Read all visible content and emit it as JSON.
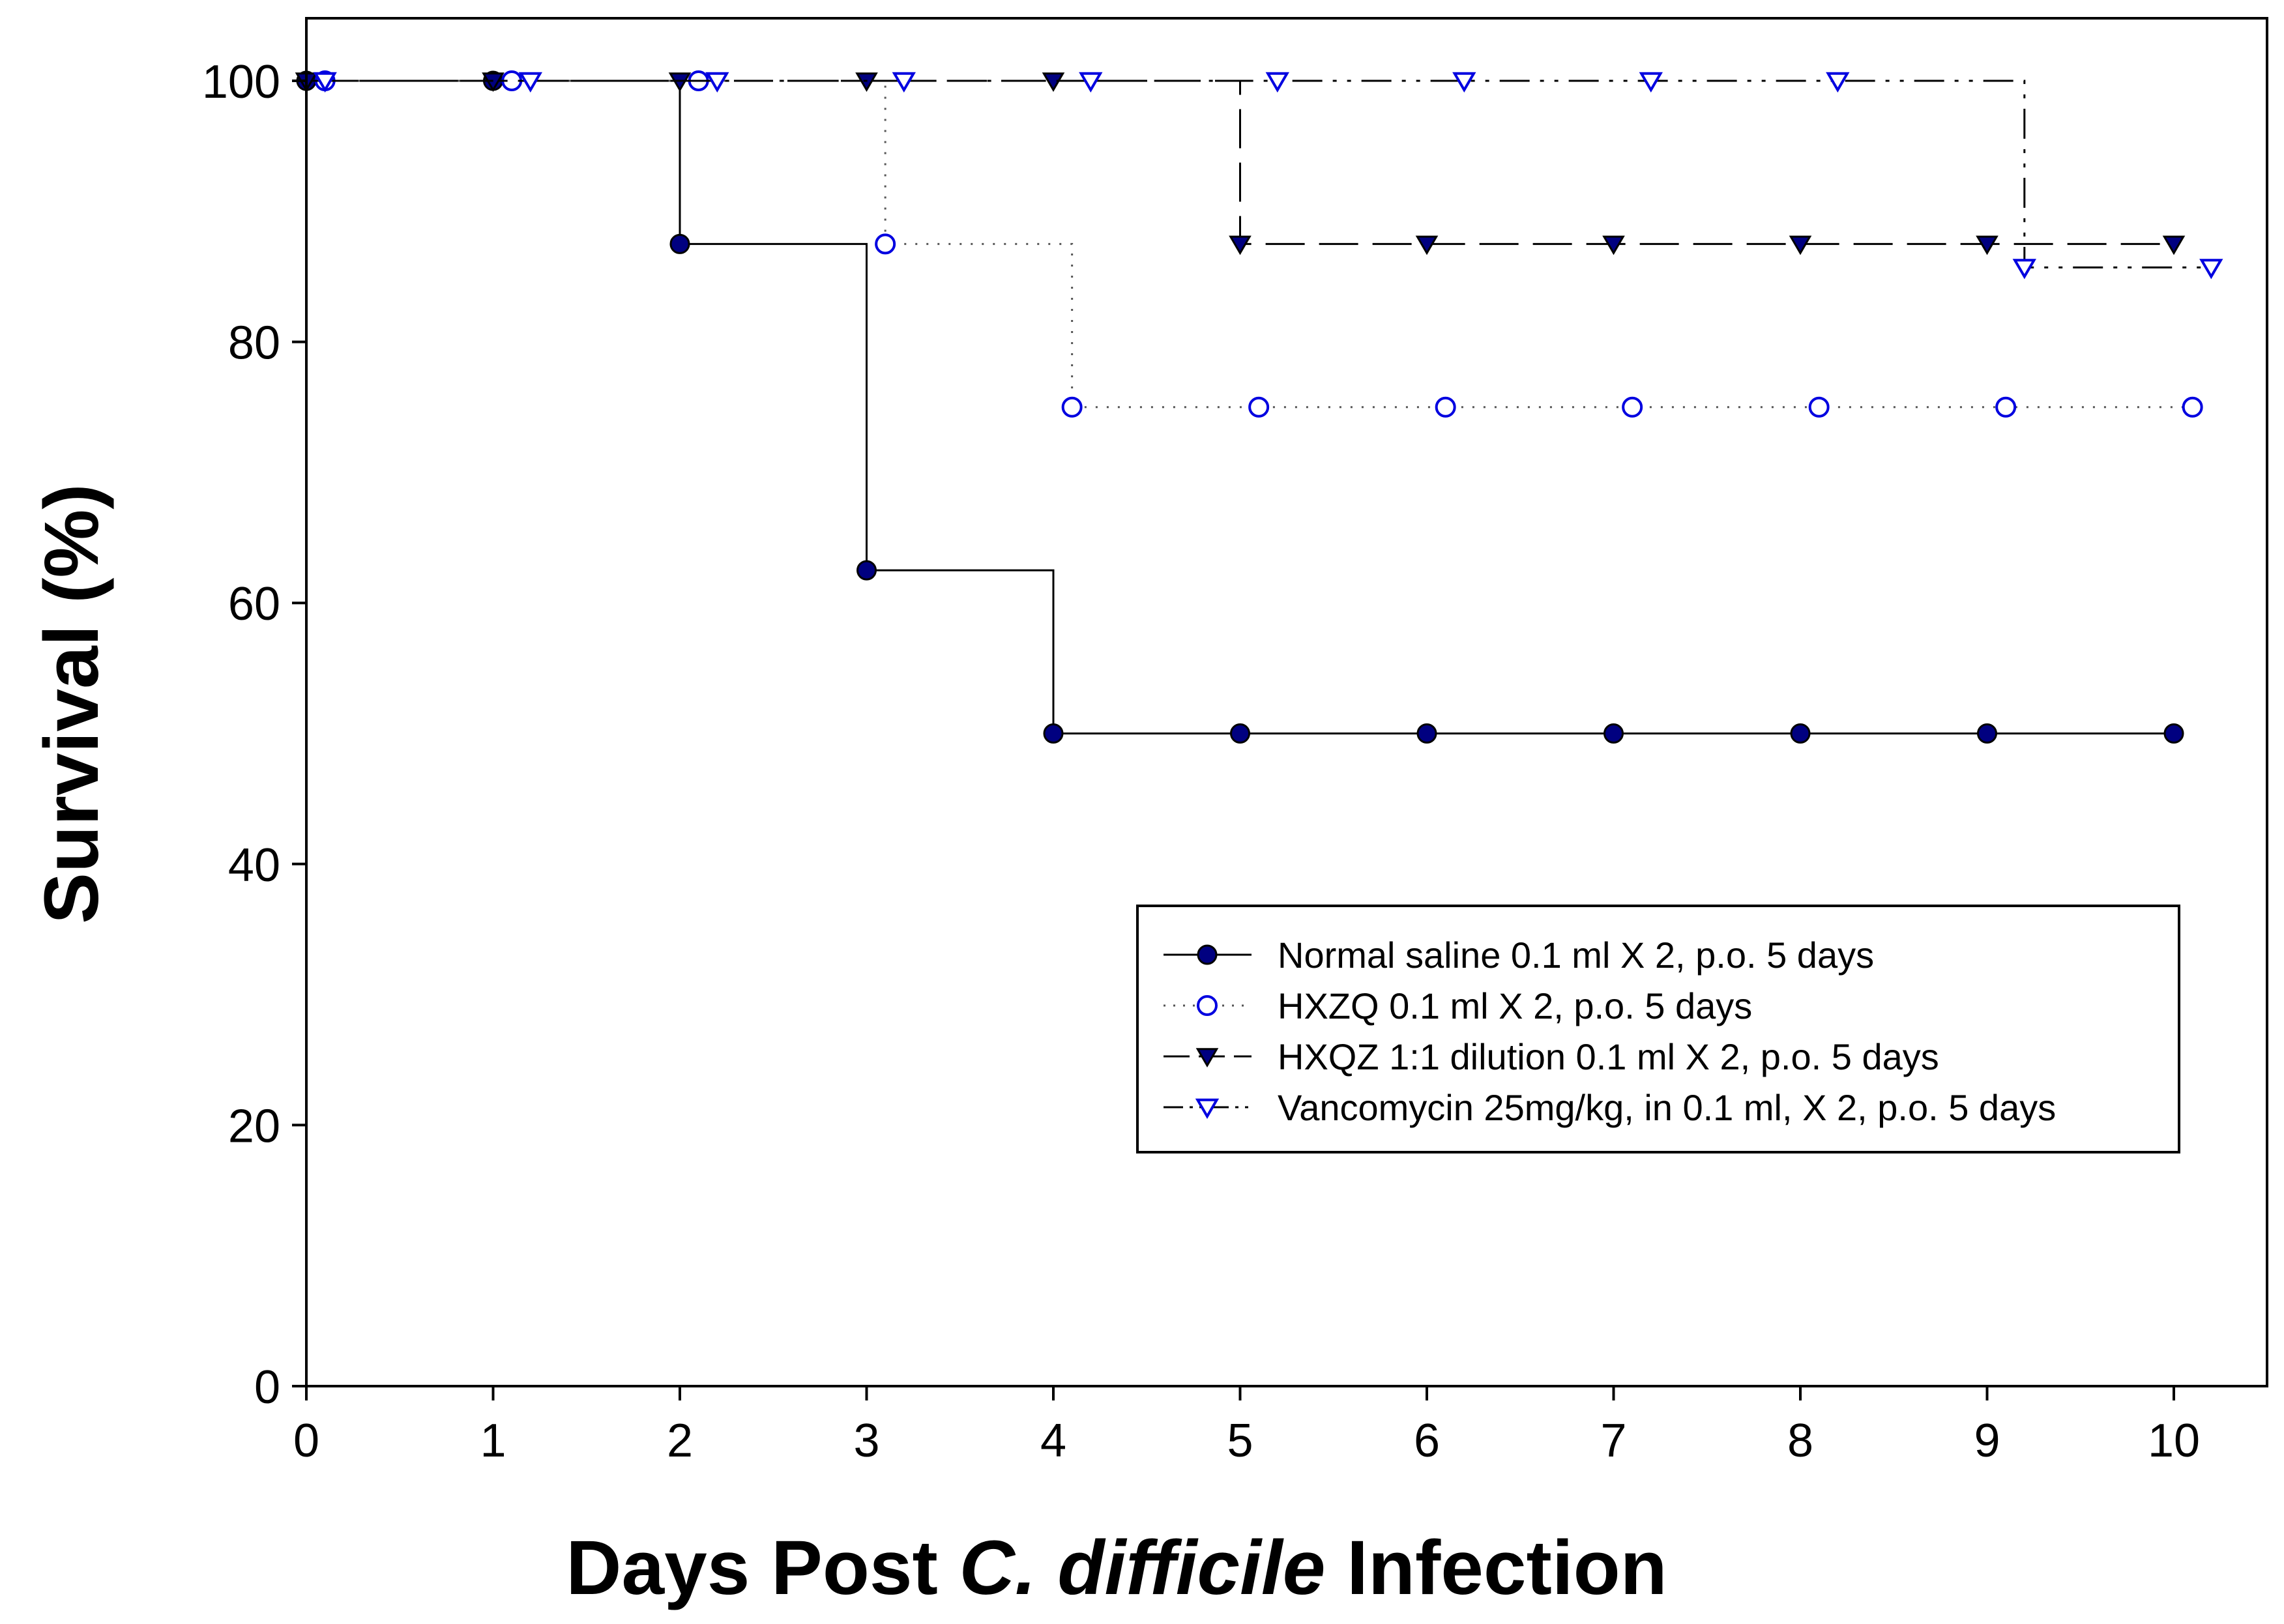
{
  "chart_data": {
    "type": "line",
    "subtype": "kaplan-meier-survival",
    "title": "",
    "xlabel_parts": [
      {
        "text": "Days Post ",
        "italic": false
      },
      {
        "text": "C. difficile",
        "italic": true
      },
      {
        "text": " Infection",
        "italic": false
      }
    ],
    "ylabel": "Survival (%)",
    "xlim": [
      0,
      10.5
    ],
    "ylim": [
      0,
      105
    ],
    "xticks": [
      0,
      1,
      2,
      3,
      4,
      5,
      6,
      7,
      8,
      9,
      10
    ],
    "xtick_labels": [
      "0",
      "1",
      "2",
      "3",
      "4",
      "5",
      "6",
      "7",
      "8",
      "9",
      "10"
    ],
    "yticks": [
      0,
      20,
      40,
      60,
      80,
      100
    ],
    "ytick_labels": [
      "0",
      "20",
      "40",
      "60",
      "80",
      "100"
    ],
    "grid": false,
    "legend_position": "lower-right",
    "series": [
      {
        "name": "Normal saline 0.1 ml X 2, p.o. 5 days",
        "line_style": "solid",
        "marker": "circle-filled",
        "line_color": "#000000",
        "marker_color": "#000080",
        "steps": [
          [
            0,
            100
          ],
          [
            2,
            87.5
          ],
          [
            3,
            62.5
          ],
          [
            4,
            50
          ],
          [
            10,
            50
          ]
        ],
        "points": [
          [
            0,
            100
          ],
          [
            1,
            100
          ],
          [
            2,
            87.5
          ],
          [
            3,
            62.5
          ],
          [
            4,
            50
          ],
          [
            5,
            50
          ],
          [
            6,
            50
          ],
          [
            7,
            50
          ],
          [
            8,
            50
          ],
          [
            9,
            50
          ],
          [
            10,
            50
          ]
        ]
      },
      {
        "name": "HXZQ 0.1 ml X 2, p.o. 5 days",
        "line_style": "dotted",
        "marker": "circle-open",
        "line_color": "#555555",
        "marker_color": "#0000e0",
        "steps": [
          [
            0.1,
            100
          ],
          [
            3.1,
            87.5
          ],
          [
            4.1,
            75
          ],
          [
            10.1,
            75
          ]
        ],
        "points": [
          [
            0.1,
            100
          ],
          [
            1.1,
            100
          ],
          [
            2.1,
            100
          ],
          [
            3.1,
            87.5
          ],
          [
            4.1,
            75
          ],
          [
            5.1,
            75
          ],
          [
            6.1,
            75
          ],
          [
            7.1,
            75
          ],
          [
            8.1,
            75
          ],
          [
            9.1,
            75
          ],
          [
            10.1,
            75
          ]
        ]
      },
      {
        "name": "HXQZ 1:1 dilution 0.1 ml X 2, p.o. 5 days",
        "line_style": "long-dash",
        "marker": "triangle-down-filled",
        "line_color": "#000000",
        "marker_color": "#000080",
        "steps": [
          [
            0,
            100
          ],
          [
            5,
            87.5
          ],
          [
            10,
            87.5
          ]
        ],
        "points": [
          [
            0,
            100
          ],
          [
            1,
            100
          ],
          [
            2,
            100
          ],
          [
            3,
            100
          ],
          [
            4,
            100
          ],
          [
            5,
            87.5
          ],
          [
            6,
            87.5
          ],
          [
            7,
            87.5
          ],
          [
            8,
            87.5
          ],
          [
            9,
            87.5
          ],
          [
            10,
            87.5
          ]
        ]
      },
      {
        "name": "Vancomycin 25mg/kg, in 0.1 ml, X 2, p.o. 5 days",
        "line_style": "dash-dot-dot",
        "marker": "triangle-down-open",
        "line_color": "#000000",
        "marker_color": "#0000e0",
        "steps": [
          [
            0.1,
            100
          ],
          [
            9.2,
            85.7
          ],
          [
            10.2,
            85.7
          ]
        ],
        "points": [
          [
            0.1,
            100
          ],
          [
            1.2,
            100
          ],
          [
            2.2,
            100
          ],
          [
            3.2,
            100
          ],
          [
            4.2,
            100
          ],
          [
            5.2,
            100
          ],
          [
            6.2,
            100
          ],
          [
            7.2,
            100
          ],
          [
            8.2,
            100
          ],
          [
            9.2,
            85.7
          ],
          [
            10.2,
            85.7
          ]
        ]
      }
    ]
  }
}
